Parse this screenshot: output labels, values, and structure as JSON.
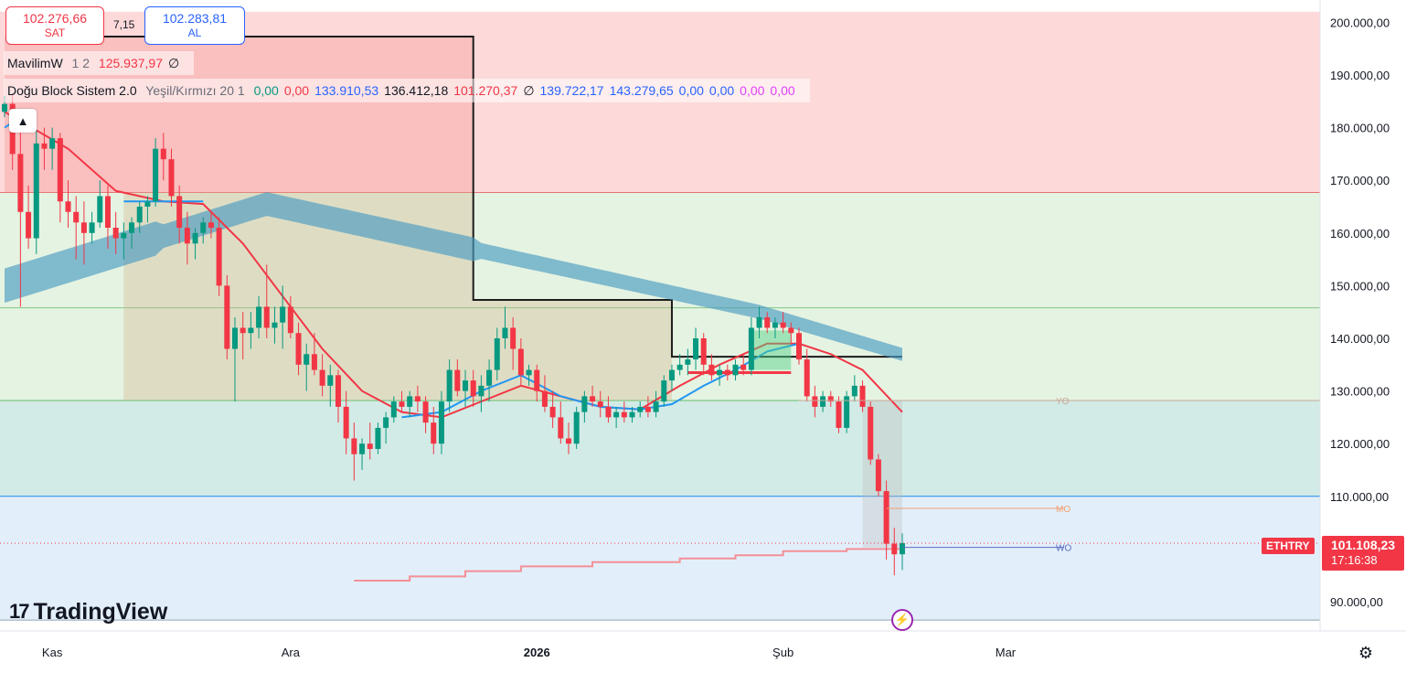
{
  "quote": {
    "sell_value": "102.276,66",
    "sell_label": "SAT",
    "spread": "7,15",
    "buy_value": "102.283,81",
    "buy_label": "AL"
  },
  "legend": [
    {
      "name": "MavilimW",
      "params": "1 2",
      "values": [
        {
          "text": "125.937,97",
          "color": "red"
        },
        {
          "text": "∅",
          "color": "dark"
        }
      ]
    },
    {
      "name": "Doğu Block Sistem 2.0",
      "params": "Yeşil/Kırmızı 20 1",
      "values": [
        {
          "text": "0,00",
          "color": "green"
        },
        {
          "text": "0,00",
          "color": "red"
        },
        {
          "text": "133.910,53",
          "color": "blue"
        },
        {
          "text": "136.412,18",
          "color": "dark"
        },
        {
          "text": "101.270,37",
          "color": "red"
        },
        {
          "text": "∅",
          "color": "dark"
        },
        {
          "text": "139.722,17",
          "color": "blue"
        },
        {
          "text": "143.279,65",
          "color": "blue"
        },
        {
          "text": "0,00",
          "color": "blue"
        },
        {
          "text": "0,00",
          "color": "blue"
        },
        {
          "text": "0,00",
          "color": "purple"
        },
        {
          "text": "0,00",
          "color": "purple"
        }
      ]
    }
  ],
  "price_tag": {
    "symbol": "ETHTRY",
    "price": "101.108,23",
    "countdown": "17:16:38"
  },
  "branding": {
    "logo_text": "TradingView",
    "logo_mark": "17"
  },
  "icons": {
    "collapse": "chevron-up-icon",
    "settings": "gear-icon",
    "event": "lightning-icon"
  },
  "colors": {
    "up": "#089981",
    "down": "#f23645",
    "mavilim": "#2196f3",
    "ema_band": "#5ba8c6"
  },
  "chart_data": {
    "type": "candlestick",
    "symbol": "ETHTRY",
    "y_ticks": [
      {
        "value": 90000,
        "label": "90.000,00"
      },
      {
        "value": 110000,
        "label": "110.000,00"
      },
      {
        "value": 120000,
        "label": "120.000,00"
      },
      {
        "value": 130000,
        "label": "130.000,00"
      },
      {
        "value": 140000,
        "label": "140.000,00"
      },
      {
        "value": 150000,
        "label": "150.000,00"
      },
      {
        "value": 160000,
        "label": "160.000,00"
      },
      {
        "value": 170000,
        "label": "170.000,00"
      },
      {
        "value": 180000,
        "label": "180.000,00"
      },
      {
        "value": 190000,
        "label": "190.000,00"
      },
      {
        "value": 200000,
        "label": "200.000,00"
      }
    ],
    "x_ticks": [
      {
        "label": "Kas",
        "bold": false,
        "day": 6
      },
      {
        "label": "Ara",
        "bold": false,
        "day": 36
      },
      {
        "label": "2026",
        "bold": true,
        "day": 67
      },
      {
        "label": "Şub",
        "bold": false,
        "day": 98
      },
      {
        "label": "Mar",
        "bold": false,
        "day": 126
      }
    ],
    "zones": [
      {
        "from": 167700,
        "to": 202000,
        "color": "red"
      },
      {
        "from": 145800,
        "to": 167700,
        "color": "green"
      },
      {
        "from": 128200,
        "to": 145800,
        "color": "green"
      },
      {
        "from": 110000,
        "to": 128200,
        "color": "teal"
      },
      {
        "from": 86500,
        "to": 110000,
        "color": "blue"
      }
    ],
    "levels": [
      {
        "label": "YO",
        "value": 128200
      },
      {
        "label": "MO",
        "value": 107700
      },
      {
        "label": "WO",
        "value": 100300
      }
    ],
    "last_price": 101108.23,
    "candles": [
      [
        0,
        183000,
        186000,
        182000,
        184500
      ],
      [
        1,
        184500,
        186500,
        172000,
        175000
      ],
      [
        2,
        175000,
        180000,
        146000,
        164000
      ],
      [
        3,
        164000,
        169000,
        157000,
        159000
      ],
      [
        4,
        159000,
        179500,
        156000,
        177000
      ],
      [
        5,
        177000,
        180000,
        172000,
        176000
      ],
      [
        6,
        176000,
        180000,
        172000,
        178000
      ],
      [
        7,
        178000,
        179000,
        162000,
        166000
      ],
      [
        8,
        166000,
        170000,
        161000,
        164000
      ],
      [
        9,
        164000,
        167000,
        155000,
        162000
      ],
      [
        10,
        162000,
        166000,
        154000,
        160000
      ],
      [
        11,
        160000,
        164000,
        158000,
        162000
      ],
      [
        12,
        162000,
        170000,
        161000,
        167000
      ],
      [
        13,
        167000,
        169000,
        157000,
        161000
      ],
      [
        14,
        161000,
        164000,
        156000,
        159000
      ],
      [
        15,
        159000,
        162000,
        155000,
        160000
      ],
      [
        16,
        160000,
        163000,
        157000,
        162000
      ],
      [
        17,
        162000,
        166000,
        160000,
        165000
      ],
      [
        18,
        165000,
        167000,
        162000,
        166000
      ],
      [
        19,
        166000,
        178000,
        165000,
        176000
      ],
      [
        20,
        176000,
        179000,
        170000,
        174000
      ],
      [
        21,
        174000,
        176000,
        165000,
        167000
      ],
      [
        22,
        167000,
        169000,
        158000,
        161000
      ],
      [
        23,
        161000,
        164000,
        154000,
        158000
      ],
      [
        24,
        158000,
        161000,
        155000,
        160000
      ],
      [
        25,
        160000,
        163000,
        158000,
        162000
      ],
      [
        26,
        162000,
        164000,
        159000,
        161000
      ],
      [
        27,
        161000,
        163000,
        148000,
        150000
      ],
      [
        28,
        150000,
        152000,
        136000,
        138000
      ],
      [
        29,
        138000,
        144000,
        128000,
        142000
      ],
      [
        30,
        142000,
        145000,
        136000,
        141000
      ],
      [
        31,
        141000,
        145000,
        138000,
        142000
      ],
      [
        32,
        142000,
        148000,
        140000,
        146000
      ],
      [
        33,
        146000,
        154000,
        140000,
        142000
      ],
      [
        34,
        142000,
        146000,
        139000,
        143000
      ],
      [
        35,
        143000,
        150000,
        138000,
        146000
      ],
      [
        36,
        146000,
        148000,
        140000,
        141000
      ],
      [
        37,
        141000,
        143000,
        133000,
        135000
      ],
      [
        38,
        135000,
        139000,
        130000,
        137000
      ],
      [
        39,
        137000,
        141000,
        133000,
        134000
      ],
      [
        40,
        134000,
        137000,
        129000,
        131000
      ],
      [
        41,
        131000,
        135000,
        127000,
        133000
      ],
      [
        42,
        133000,
        134000,
        124000,
        127000
      ],
      [
        43,
        127000,
        130000,
        118000,
        121000
      ],
      [
        44,
        121000,
        124000,
        113000,
        118000
      ],
      [
        45,
        118000,
        121000,
        115000,
        120000
      ],
      [
        46,
        120000,
        124000,
        117000,
        119000
      ],
      [
        47,
        119000,
        124000,
        118000,
        123000
      ],
      [
        48,
        123000,
        126000,
        120000,
        125000
      ],
      [
        49,
        125000,
        129000,
        124000,
        128000
      ],
      [
        50,
        128000,
        130000,
        126000,
        127000
      ],
      [
        51,
        127000,
        130000,
        125000,
        129000
      ],
      [
        52,
        129000,
        131000,
        126000,
        128000
      ],
      [
        53,
        128000,
        129000,
        122000,
        124000
      ],
      [
        54,
        124000,
        127000,
        118000,
        120000
      ],
      [
        55,
        120000,
        130000,
        118000,
        128000
      ],
      [
        56,
        128000,
        136000,
        126000,
        134000
      ],
      [
        57,
        134000,
        136000,
        129000,
        130000
      ],
      [
        58,
        130000,
        134000,
        127000,
        132000
      ],
      [
        59,
        132000,
        134000,
        127000,
        129000
      ],
      [
        60,
        129000,
        133000,
        126000,
        131000
      ],
      [
        61,
        131000,
        136000,
        128000,
        134000
      ],
      [
        62,
        134000,
        142000,
        132000,
        140000
      ],
      [
        63,
        140000,
        146000,
        138000,
        142000
      ],
      [
        64,
        142000,
        144000,
        134000,
        138000
      ],
      [
        65,
        138000,
        140000,
        131000,
        133000
      ],
      [
        66,
        133000,
        135000,
        131000,
        134000
      ],
      [
        67,
        134000,
        135000,
        128000,
        130000
      ],
      [
        68,
        130000,
        133000,
        126000,
        127000
      ],
      [
        69,
        127000,
        130000,
        123000,
        125000
      ],
      [
        70,
        125000,
        128000,
        120000,
        121000
      ],
      [
        71,
        121000,
        124000,
        118000,
        120000
      ],
      [
        72,
        120000,
        127000,
        119000,
        126000
      ],
      [
        73,
        126000,
        130000,
        124000,
        129000
      ],
      [
        74,
        129000,
        131000,
        127000,
        128000
      ],
      [
        75,
        128000,
        130000,
        125000,
        127000
      ],
      [
        76,
        127000,
        129000,
        124000,
        125000
      ],
      [
        77,
        125000,
        127000,
        123000,
        126000
      ],
      [
        78,
        126000,
        128000,
        124000,
        125000
      ],
      [
        79,
        125000,
        127000,
        124000,
        126000
      ],
      [
        80,
        126000,
        128000,
        125000,
        127000
      ],
      [
        81,
        127000,
        129000,
        125000,
        126000
      ],
      [
        82,
        126000,
        130000,
        125000,
        128000
      ],
      [
        83,
        128000,
        133000,
        127000,
        132000
      ],
      [
        84,
        132000,
        135000,
        130000,
        134000
      ],
      [
        85,
        134000,
        137000,
        133000,
        135000
      ],
      [
        86,
        135000,
        138000,
        133000,
        136000
      ],
      [
        87,
        136000,
        142000,
        134000,
        140000
      ],
      [
        88,
        140000,
        141000,
        133000,
        135000
      ],
      [
        89,
        135000,
        137000,
        132000,
        133000
      ],
      [
        90,
        133000,
        135000,
        131000,
        134000
      ],
      [
        91,
        134000,
        135000,
        132000,
        133000
      ],
      [
        92,
        133000,
        136000,
        132000,
        135000
      ],
      [
        93,
        135000,
        137000,
        133000,
        134000
      ],
      [
        94,
        134000,
        144000,
        133000,
        142000
      ],
      [
        95,
        142000,
        146000,
        140000,
        144000
      ],
      [
        96,
        144000,
        145000,
        141000,
        142000
      ],
      [
        97,
        142000,
        144000,
        140000,
        143000
      ],
      [
        98,
        143000,
        145000,
        141000,
        142000
      ],
      [
        99,
        142000,
        143000,
        139000,
        141000
      ],
      [
        100,
        141000,
        142000,
        135000,
        136000
      ],
      [
        101,
        136000,
        138000,
        128000,
        129000
      ],
      [
        102,
        129000,
        131000,
        125000,
        127000
      ],
      [
        103,
        127000,
        130000,
        126000,
        129000
      ],
      [
        104,
        129000,
        130000,
        127000,
        128000
      ],
      [
        105,
        128000,
        129000,
        122000,
        123000
      ],
      [
        106,
        123000,
        130000,
        122000,
        129000
      ],
      [
        107,
        129000,
        133000,
        128000,
        131000
      ],
      [
        108,
        131000,
        132000,
        126000,
        127000
      ],
      [
        109,
        127000,
        128000,
        116000,
        117000
      ],
      [
        110,
        117000,
        118000,
        110000,
        111000
      ],
      [
        111,
        111000,
        113000,
        98000,
        101000
      ],
      [
        112,
        101000,
        104000,
        95000,
        99000
      ],
      [
        113,
        99000,
        103000,
        96000,
        101108
      ]
    ]
  }
}
